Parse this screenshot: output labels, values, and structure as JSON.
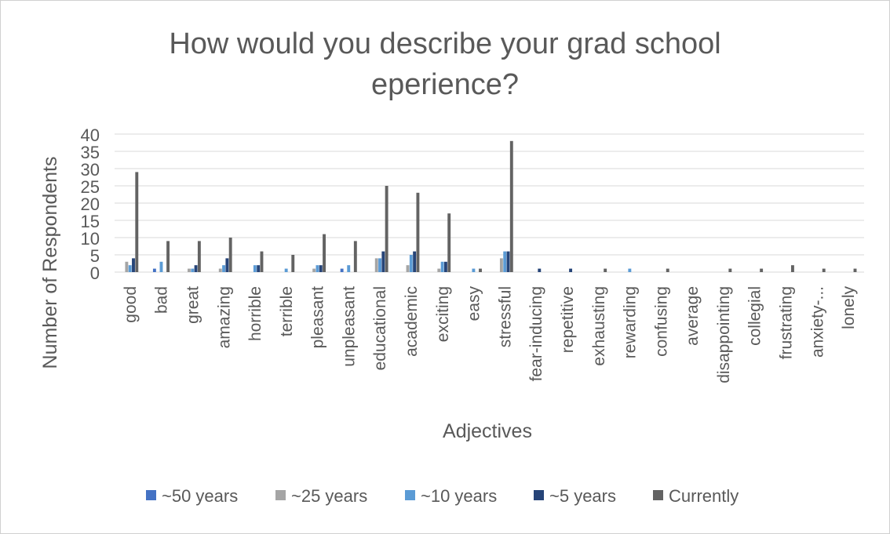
{
  "chart_data": {
    "type": "bar",
    "title_lines": [
      "How would you describe your grad school",
      "eperience?"
    ],
    "xlabel": "Adjectives",
    "ylabel": "Number of Respondents",
    "ylim": [
      0,
      40
    ],
    "yticks": [
      0,
      5,
      10,
      15,
      20,
      25,
      30,
      35,
      40
    ],
    "grid": true,
    "legend_position": "bottom",
    "categories": [
      "good",
      "bad",
      "great",
      "amazing",
      "horrible",
      "terrible",
      "pleasant",
      "unpleasant",
      "educational",
      "academic",
      "exciting",
      "easy",
      "stressful",
      "fear-inducing",
      "repetitive",
      "exhausting",
      "rewarding",
      "confusing",
      "average",
      "disappointing",
      "collegial",
      "frustrating",
      "anxiety-...",
      "lonely"
    ],
    "series": [
      {
        "name": "~50 years",
        "color": "#4472c4",
        "values": [
          0,
          1,
          0,
          0,
          0,
          0,
          0,
          1,
          0,
          0,
          0,
          0,
          0,
          0,
          0,
          0,
          0,
          0,
          0,
          0,
          0,
          0,
          0,
          0
        ]
      },
      {
        "name": "~25 years",
        "color": "#a5a5a5",
        "values": [
          3,
          0,
          1,
          1,
          0,
          0,
          1,
          0,
          4,
          2,
          1,
          0,
          4,
          0,
          0,
          0,
          0,
          0,
          0,
          0,
          0,
          0,
          0,
          0
        ]
      },
      {
        "name": "~10 years",
        "color": "#5b9bd5",
        "values": [
          2,
          3,
          1,
          2,
          2,
          1,
          2,
          2,
          4,
          5,
          3,
          1,
          6,
          0,
          0,
          0,
          1,
          0,
          0,
          0,
          0,
          0,
          0,
          0
        ]
      },
      {
        "name": "~5 years",
        "color": "#264478",
        "values": [
          4,
          0,
          2,
          4,
          2,
          0,
          2,
          0,
          6,
          6,
          3,
          0,
          6,
          1,
          1,
          0,
          0,
          0,
          0,
          0,
          0,
          0,
          0,
          0
        ]
      },
      {
        "name": "Currently",
        "color": "#636363",
        "values": [
          29,
          9,
          9,
          10,
          6,
          5,
          11,
          9,
          25,
          23,
          17,
          1,
          38,
          0,
          0,
          1,
          0,
          1,
          0,
          1,
          1,
          2,
          1,
          1
        ]
      }
    ]
  }
}
